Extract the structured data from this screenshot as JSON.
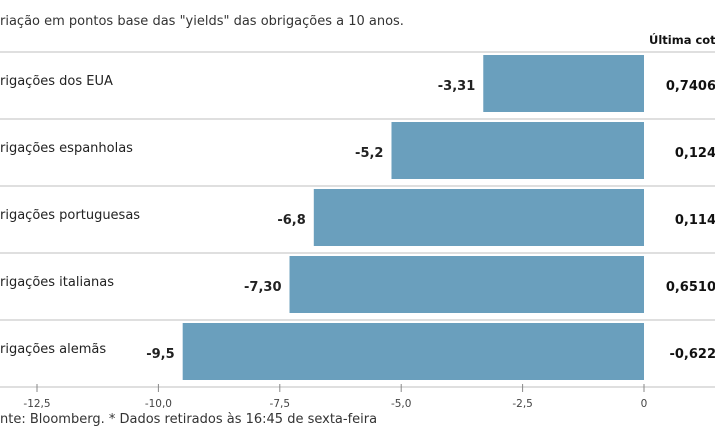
{
  "subtitle": "riação em pontos base das \"yields\" das obrigações a 10 anos.",
  "source": "nte: Bloomberg.  * Dados retirados às 16:45 de sexta-feira",
  "last_column_header": "Última cotaç",
  "colors": {
    "bar": "#6a9fbd",
    "row_line": "#bfbfbf",
    "axis": "#888888"
  },
  "chart_data": {
    "type": "bar",
    "orientation": "horizontal",
    "categories": [
      "rigações dos EUA",
      "rigações espanholas",
      "rigações portuguesas",
      "rigações italianas",
      "rigações alemãs"
    ],
    "values": [
      -3.31,
      -5.2,
      -6.8,
      -7.3,
      -9.5
    ],
    "value_labels": [
      "-3,31",
      "-5,2",
      "-6,8",
      "-7,30",
      "-9,5"
    ],
    "last_quote": [
      "0,7406",
      "0,124",
      "0,114",
      "0,6510",
      "-0,622"
    ],
    "xlim": [
      -13.0,
      0
    ],
    "xticks": [
      -12.5,
      -10.0,
      -7.5,
      -5.0,
      -2.5,
      0
    ],
    "xtick_labels": [
      "-12,5",
      "-10,0",
      "-7,5",
      "-5,0",
      "-2,5",
      "0"
    ]
  }
}
